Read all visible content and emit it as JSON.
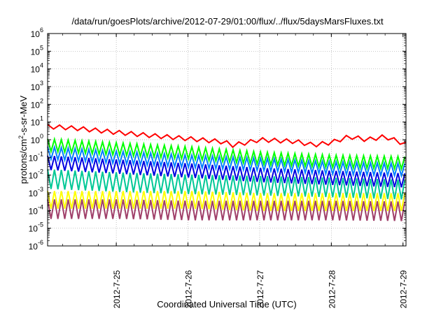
{
  "chart_data": {
    "type": "line",
    "title": "/data/run/goesPlots/archive/2012-07-29/01:00/flux/../flux/5daysMarsFluxes.txt",
    "xlabel": "Coordinated Universal Time (UTC)",
    "ylabel": "protons/cm²-s-sr-MeV",
    "y_scale": "log",
    "ylim": [
      1e-06,
      1000000.0
    ],
    "y_ticks": [
      {
        "base": "10",
        "exp": "-6",
        "value": 1e-06
      },
      {
        "base": "10",
        "exp": "-5",
        "value": 1e-05
      },
      {
        "base": "10",
        "exp": "-4",
        "value": 0.0001
      },
      {
        "base": "10",
        "exp": "-3",
        "value": 0.001
      },
      {
        "base": "10",
        "exp": "-2",
        "value": 0.01
      },
      {
        "base": "10",
        "exp": "-1",
        "value": 0.1
      },
      {
        "base": "10",
        "exp": "0",
        "value": 1
      },
      {
        "base": "10",
        "exp": "1",
        "value": 10
      },
      {
        "base": "10",
        "exp": "2",
        "value": 100
      },
      {
        "base": "10",
        "exp": "3",
        "value": 1000
      },
      {
        "base": "10",
        "exp": "4",
        "value": 10000
      },
      {
        "base": "10",
        "exp": "5",
        "value": 100000
      },
      {
        "base": "10",
        "exp": "6",
        "value": 1000000
      }
    ],
    "x_ticks": [
      "2012-7-25",
      "2012-7-26",
      "2012-7-27",
      "2012-7-28",
      "2012-7-29"
    ],
    "x_range_days": [
      "2012-07-24 01:00",
      "2012-07-29 01:00"
    ],
    "grid": true,
    "legend": "none",
    "series": [
      {
        "color": "#ff0000",
        "x": [
          "2012-07-24 01:00",
          "2012-07-24 06:00",
          "2012-07-24 12:00",
          "2012-07-25 00:00",
          "2012-07-25 12:00",
          "2012-07-26 00:00",
          "2012-07-26 12:00",
          "2012-07-26 15:00",
          "2012-07-26 20:00",
          "2012-07-27 00:00",
          "2012-07-27 12:00",
          "2012-07-27 18:00",
          "2012-07-28 00:00",
          "2012-07-28 06:00",
          "2012-07-28 12:00",
          "2012-07-28 18:00",
          "2012-07-29 01:00"
        ],
        "values": [
          5.5,
          5.0,
          4.2,
          2.6,
          1.7,
          1.15,
          0.75,
          0.5,
          0.7,
          1.0,
          0.8,
          0.5,
          0.7,
          1.5,
          1.0,
          1.5,
          0.55
        ],
        "saw_amp": 0.12,
        "saw_period_h": 4
      },
      {
        "color": "#00ff00",
        "x": [
          "2012-07-24 01:00",
          "2012-07-25 01:00",
          "2012-07-26 01:00",
          "2012-07-27 01:00",
          "2012-07-28 01:00",
          "2012-07-29 01:00"
        ],
        "values": [
          0.5,
          0.3,
          0.18,
          0.09,
          0.06,
          0.05
        ],
        "saw_amp": 0.35,
        "saw_period_h": 2.3
      },
      {
        "color": "#0080ff",
        "x": [
          "2012-07-24 01:00",
          "2012-07-25 01:00",
          "2012-07-26 01:00",
          "2012-07-27 01:00",
          "2012-07-28 01:00",
          "2012-07-29 01:00"
        ],
        "values": [
          0.18,
          0.1,
          0.06,
          0.04,
          0.025,
          0.02
        ],
        "saw_amp": 0.35,
        "saw_period_h": 2.3
      },
      {
        "color": "#0000e0",
        "x": [
          "2012-07-24 01:00",
          "2012-07-25 01:00",
          "2012-07-26 01:00",
          "2012-07-27 01:00",
          "2012-07-28 01:00",
          "2012-07-29 01:00"
        ],
        "values": [
          0.05,
          0.03,
          0.018,
          0.01,
          0.007,
          0.005
        ],
        "saw_amp": 0.4,
        "saw_period_h": 2.3
      },
      {
        "color": "#00c896",
        "x": [
          "2012-07-24 01:00",
          "2012-07-25 01:00",
          "2012-07-26 01:00",
          "2012-07-27 01:00",
          "2012-07-28 01:00",
          "2012-07-29 01:00"
        ],
        "values": [
          0.006,
          0.004,
          0.003,
          0.0025,
          0.002,
          0.0015
        ],
        "saw_amp": 0.55,
        "saw_period_h": 2.3
      },
      {
        "color": "#ffff00",
        "x": [
          "2012-07-24 01:00",
          "2012-07-25 01:00",
          "2012-07-26 01:00",
          "2012-07-27 01:00",
          "2012-07-28 01:00",
          "2012-07-29 01:00"
        ],
        "values": [
          0.0004,
          0.0004,
          0.0004,
          0.0003,
          0.0003,
          0.0003
        ],
        "saw_amp": 0.5,
        "saw_period_h": 2.3
      },
      {
        "color": "#a0406a",
        "x": [
          "2012-07-24 01:00",
          "2012-07-25 01:00",
          "2012-07-26 01:00",
          "2012-07-27 01:00",
          "2012-07-28 01:00",
          "2012-07-29 01:00"
        ],
        "values": [
          0.00012,
          0.00012,
          0.0001,
          0.0001,
          0.0001,
          9e-05
        ],
        "saw_amp": 0.55,
        "saw_period_h": 2.3
      }
    ]
  }
}
